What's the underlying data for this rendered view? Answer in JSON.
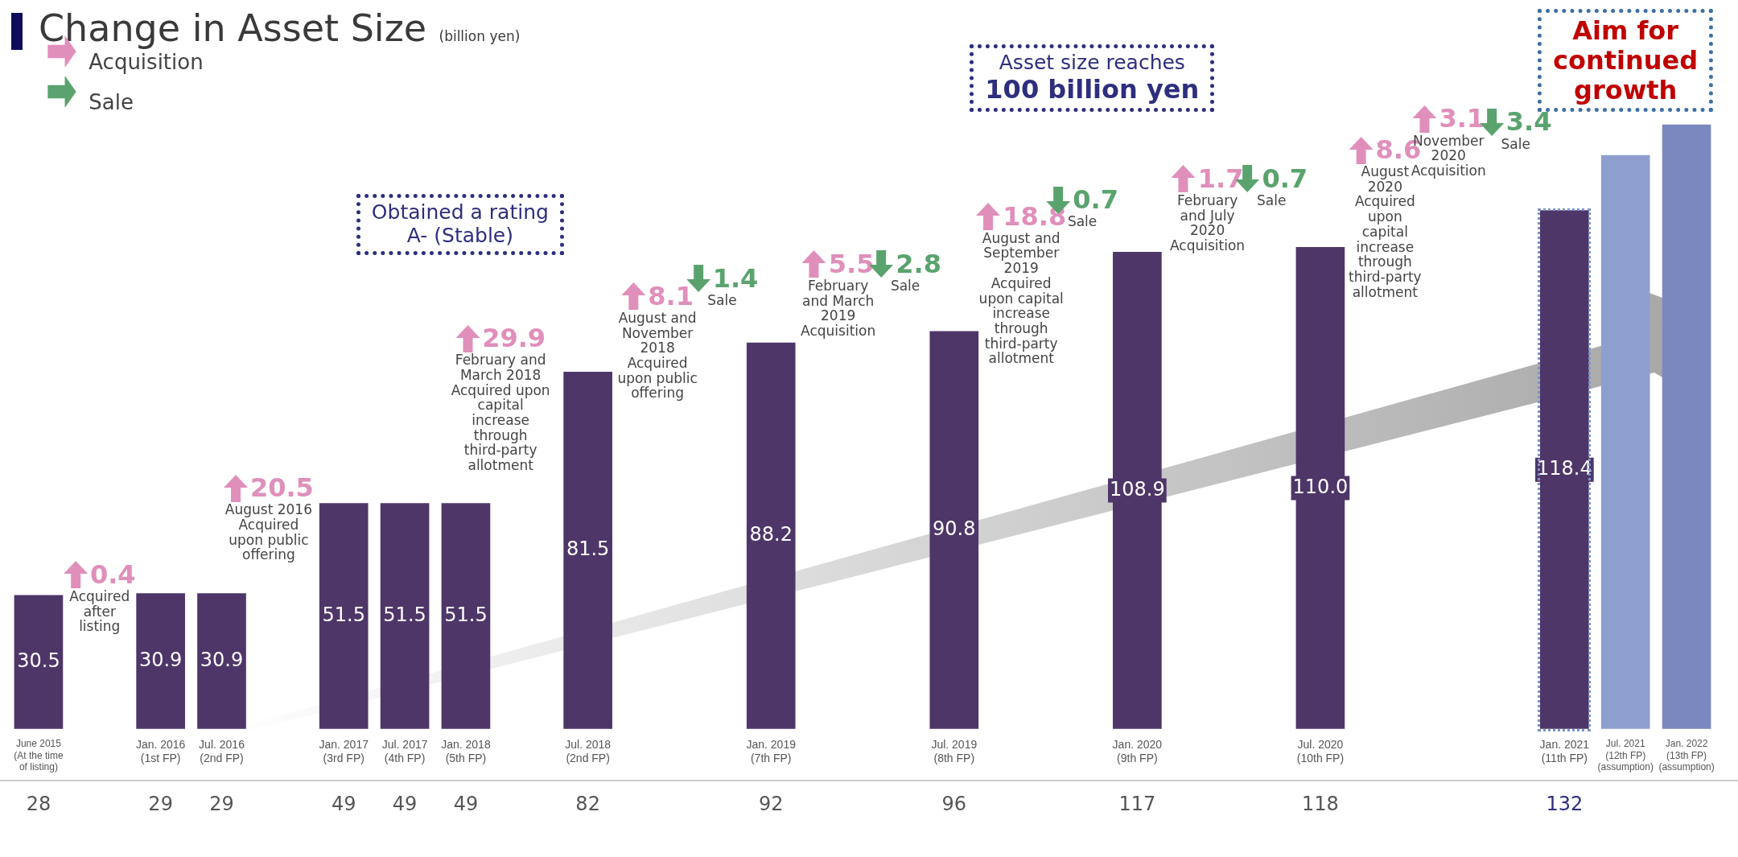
{
  "chart_data": {
    "type": "bar",
    "title": "Change in Asset Size",
    "subtitle": "(billion yen)",
    "categories": [
      "June 2015\n(At the time\nof listing)",
      null,
      "Jan. 2016\n(1st FP)",
      "Jul. 2016\n(2nd FP)",
      null,
      "Jan. 2017\n(3rd FP)",
      "Jul. 2017\n(4th FP)",
      "Jan. 2018\n(5th FP)",
      null,
      "Jul. 2018\n(2nd FP)",
      null,
      null,
      "Jan. 2019\n(7th FP)",
      null,
      null,
      "Jul. 2019\n(8th FP)",
      null,
      null,
      "Jan. 2020\n(9th FP)",
      null,
      null,
      "Jul. 2020\n(10th FP)",
      null,
      null,
      null,
      "Jan. 2021\n(11th FP)",
      "Jul. 2021\n(12th FP)\n(assumption)",
      "Jan. 2022\n(13th FP)\n(assumption)"
    ],
    "values": [
      30.5,
      null,
      30.9,
      30.9,
      null,
      51.5,
      51.5,
      51.5,
      null,
      81.5,
      null,
      null,
      88.2,
      null,
      null,
      90.8,
      null,
      null,
      108.9,
      null,
      null,
      110.0,
      null,
      null,
      null,
      118.4,
      131,
      138
    ],
    "value_labels": [
      "30.5",
      null,
      "30.9",
      "30.9",
      null,
      "51.5",
      "51.5",
      "51.5",
      null,
      "81.5",
      null,
      null,
      "88.2",
      null,
      null,
      "90.8",
      null,
      null,
      "108.9",
      null,
      null,
      "110.0",
      null,
      null,
      null,
      "118.4",
      null,
      null
    ],
    "colors": [
      "#4e3669",
      "#4e3669",
      "#4e3669",
      "#4e3669",
      "#4e3669",
      "#4e3669",
      "#4e3669",
      "#4e3669",
      "#4e3669",
      "#4e3669",
      "#4e3669",
      "#4e3669",
      "#4e3669",
      "#4e3669",
      "#4e3669",
      "#4e3669",
      "#4e3669",
      "#4e3669",
      "#4e3669",
      "#4e3669",
      "#4e3669",
      "#4e3669",
      "#4e3669",
      "#4e3669",
      "#4e3669",
      "#4e3669",
      "#8e9fcf",
      "#7b88bf"
    ],
    "annotations": [
      "Acquisition",
      "Sale",
      "0.4\nAcquired\nafter\nlisting",
      "20.5\nAugust 2016\nAcquired\nupon public\noffering",
      "29.9\nFebruary and\nMarch 2018\nAcquired upon\ncapital\nincrease\nthrough\nthird-party\nallotment",
      "8.1\nAugust and\nNovember\n2018\nAcquired\nupon public\noffering",
      "1.4\nSale",
      "5.5\nFebruary\nand March\n2019\nAcquisition",
      "2.8\nSale",
      "18.8\nAugust and\nSeptember\n2019\nAcquired\nupon capital\nincrease\nthrough\nthird-party\nallotment",
      "0.7\nSale",
      "1.7\nFebruary\nand July\n2020\nAcquisition",
      "0.7\nSale",
      "8.6\nAugust\n2020\nAcquired\nupon\ncapital\nincrease\nthrough\nthird-party\nallotment",
      "3.1\nNovember\n2020\nAcquisition",
      "3.4\nSale",
      "Obtained a rating\nA- (Stable)",
      "Asset size reaches\n100 billion yen",
      "Aim for\ncontinued\ngrowth",
      "28",
      "29",
      "29",
      "49",
      "49",
      "49",
      "82",
      "92",
      "96",
      "117",
      "118",
      "132"
    ]
  }
}
